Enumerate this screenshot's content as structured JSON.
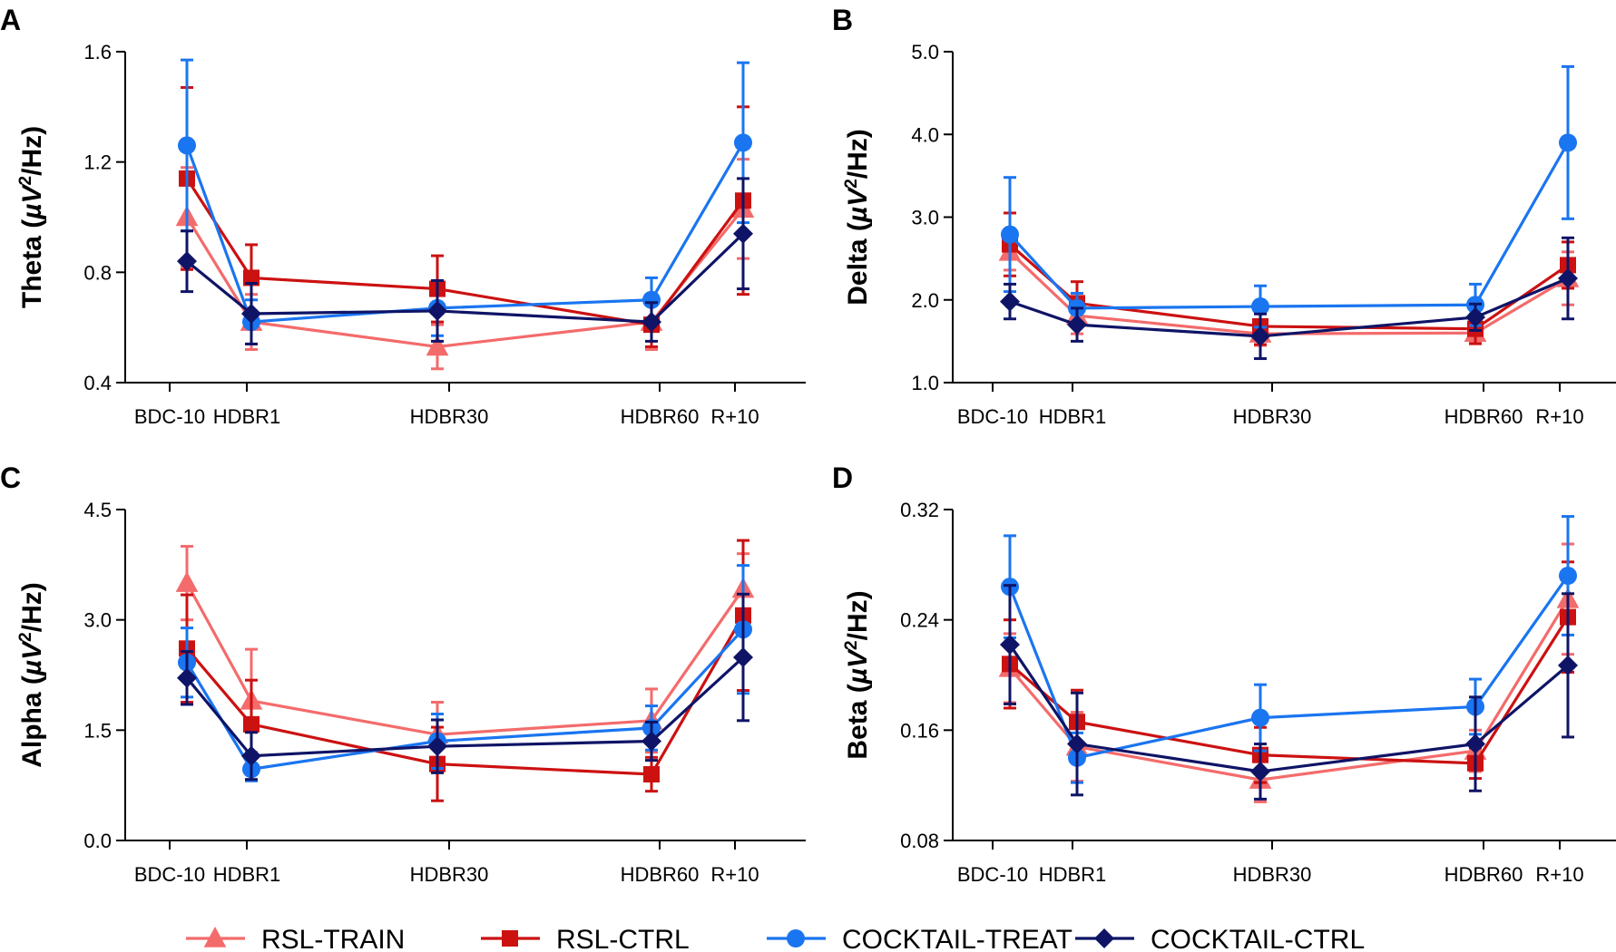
{
  "figure": {
    "series_styles": [
      {
        "name": "RSL-TRAIN",
        "color": "#f46b6b",
        "marker": "triangle"
      },
      {
        "name": "RSL-CTRL",
        "color": "#cc1111",
        "marker": "square"
      },
      {
        "name": "COCKTAIL-TREAT",
        "color": "#1a75f0",
        "marker": "circle"
      },
      {
        "name": "COCKTAIL-CTRL",
        "color": "#0f1466",
        "marker": "diamond"
      }
    ],
    "legend": {
      "position": "bottom",
      "items": [
        "RSL-TRAIN",
        "RSL-CTRL",
        "COCKTAIL-TREAT",
        "COCKTAIL-CTRL"
      ]
    }
  },
  "chart_data": [
    {
      "type": "line",
      "panel": "A",
      "ylabel": "Theta (µV²/Hz)",
      "ylabel_main": "Theta (",
      "ylabel_unit": "µV",
      "ylabel_sup": "2",
      "ylabel_end": "/Hz)",
      "ylim": [
        0.4,
        1.6
      ],
      "yticks": [
        0.4,
        0.8,
        1.2,
        1.6
      ],
      "ytick_labels": [
        "0.4",
        "0.8",
        "1.2",
        "1.6"
      ],
      "categories": [
        "BDC-10",
        "HDBR1",
        "HDBR30",
        "HDBR60",
        "R+10"
      ],
      "series": [
        {
          "name": "RSL-TRAIN",
          "values": [
            1.0,
            0.62,
            0.53,
            0.62,
            1.03
          ],
          "errors": [
            0.18,
            0.1,
            0.08,
            0.1,
            0.18
          ]
        },
        {
          "name": "RSL-CTRL",
          "values": [
            1.14,
            0.78,
            0.74,
            0.61,
            1.06
          ],
          "errors": [
            0.33,
            0.12,
            0.12,
            0.08,
            0.34
          ]
        },
        {
          "name": "COCKTAIL-TREAT",
          "values": [
            1.26,
            0.62,
            0.67,
            0.7,
            1.27
          ],
          "errors": [
            0.31,
            0.08,
            0.1,
            0.08,
            0.29
          ]
        },
        {
          "name": "COCKTAIL-CTRL",
          "values": [
            0.84,
            0.65,
            0.66,
            0.62,
            0.94
          ],
          "errors": [
            0.11,
            0.11,
            0.11,
            0.07,
            0.2
          ]
        }
      ]
    },
    {
      "type": "line",
      "panel": "B",
      "ylabel": "Delta (µV²/Hz)",
      "ylabel_main": "Delta (",
      "ylabel_unit": "µV",
      "ylabel_sup": "2",
      "ylabel_end": "/Hz)",
      "ylim": [
        1.0,
        5.0
      ],
      "yticks": [
        1.0,
        2.0,
        3.0,
        4.0,
        5.0
      ],
      "ytick_labels": [
        "1.0",
        "2.0",
        "3.0",
        "4.0",
        "5.0"
      ],
      "categories": [
        "BDC-10",
        "HDBR1",
        "HDBR30",
        "HDBR60",
        "R+10"
      ],
      "series": [
        {
          "name": "RSL-TRAIN",
          "values": [
            2.58,
            1.81,
            1.59,
            1.6,
            2.26
          ],
          "errors": [
            0.22,
            0.22,
            0.14,
            0.12,
            0.32
          ]
        },
        {
          "name": "RSL-CTRL",
          "values": [
            2.67,
            1.96,
            1.68,
            1.65,
            2.42
          ],
          "errors": [
            0.38,
            0.26,
            0.22,
            0.18,
            0.28
          ]
        },
        {
          "name": "COCKTAIL-TREAT",
          "values": [
            2.79,
            1.9,
            1.92,
            1.94,
            3.9
          ],
          "errors": [
            0.69,
            0.18,
            0.25,
            0.25,
            0.92
          ]
        },
        {
          "name": "COCKTAIL-CTRL",
          "values": [
            1.98,
            1.7,
            1.56,
            1.79,
            2.26
          ],
          "errors": [
            0.21,
            0.2,
            0.27,
            0.16,
            0.49
          ]
        }
      ]
    },
    {
      "type": "line",
      "panel": "C",
      "ylabel": "Alpha (µV²/Hz)",
      "ylabel_main": "Alpha (",
      "ylabel_unit": "µV",
      "ylabel_sup": "2",
      "ylabel_end": "/Hz)",
      "ylim": [
        0.0,
        4.5
      ],
      "yticks": [
        0.0,
        1.5,
        3.0,
        4.5
      ],
      "ytick_labels": [
        "0.0",
        "1.5",
        "3.0",
        "4.5"
      ],
      "categories": [
        "BDC-10",
        "HDBR1",
        "HDBR30",
        "HDBR60",
        "R+10"
      ],
      "series": [
        {
          "name": "RSL-TRAIN",
          "values": [
            3.5,
            1.9,
            1.44,
            1.63,
            3.42
          ],
          "errors": [
            0.5,
            0.7,
            0.44,
            0.43,
            0.48
          ]
        },
        {
          "name": "RSL-CTRL",
          "values": [
            2.61,
            1.58,
            1.04,
            0.9,
            3.06
          ],
          "errors": [
            0.73,
            0.6,
            0.5,
            0.23,
            1.02
          ]
        },
        {
          "name": "COCKTAIL-TREAT",
          "values": [
            2.42,
            0.97,
            1.35,
            1.53,
            2.87
          ],
          "errors": [
            0.47,
            0.16,
            0.37,
            0.3,
            0.87
          ]
        },
        {
          "name": "COCKTAIL-CTRL",
          "values": [
            2.21,
            1.15,
            1.28,
            1.35,
            2.49
          ],
          "errors": [
            0.36,
            0.32,
            0.36,
            0.26,
            0.86
          ]
        }
      ]
    },
    {
      "type": "line",
      "panel": "D",
      "ylabel": "Beta (µV²/Hz)",
      "ylabel_main": "Beta (",
      "ylabel_unit": "µV",
      "ylabel_sup": "2",
      "ylabel_end": "/Hz)",
      "ylim": [
        0.08,
        0.32
      ],
      "yticks": [
        0.08,
        0.16,
        0.24,
        0.32
      ],
      "ytick_labels": [
        "0.08",
        "0.16",
        "0.24",
        "0.32"
      ],
      "categories": [
        "BDC-10",
        "HDBR1",
        "HDBR30",
        "HDBR60",
        "R+10"
      ],
      "series": [
        {
          "name": "RSL-TRAIN",
          "values": [
            0.205,
            0.148,
            0.124,
            0.145,
            0.255
          ],
          "errors": [
            0.025,
            0.025,
            0.016,
            0.015,
            0.04
          ]
        },
        {
          "name": "RSL-CTRL",
          "values": [
            0.208,
            0.166,
            0.142,
            0.136,
            0.242
          ],
          "errors": [
            0.032,
            0.023,
            0.02,
            0.011,
            0.04
          ]
        },
        {
          "name": "COCKTAIL-TREAT",
          "values": [
            0.264,
            0.14,
            0.169,
            0.177,
            0.272
          ],
          "errors": [
            0.037,
            0.018,
            0.024,
            0.02,
            0.043
          ]
        },
        {
          "name": "COCKTAIL-CTRL",
          "values": [
            0.222,
            0.15,
            0.13,
            0.15,
            0.207
          ],
          "errors": [
            0.043,
            0.037,
            0.02,
            0.034,
            0.052
          ]
        }
      ]
    }
  ]
}
